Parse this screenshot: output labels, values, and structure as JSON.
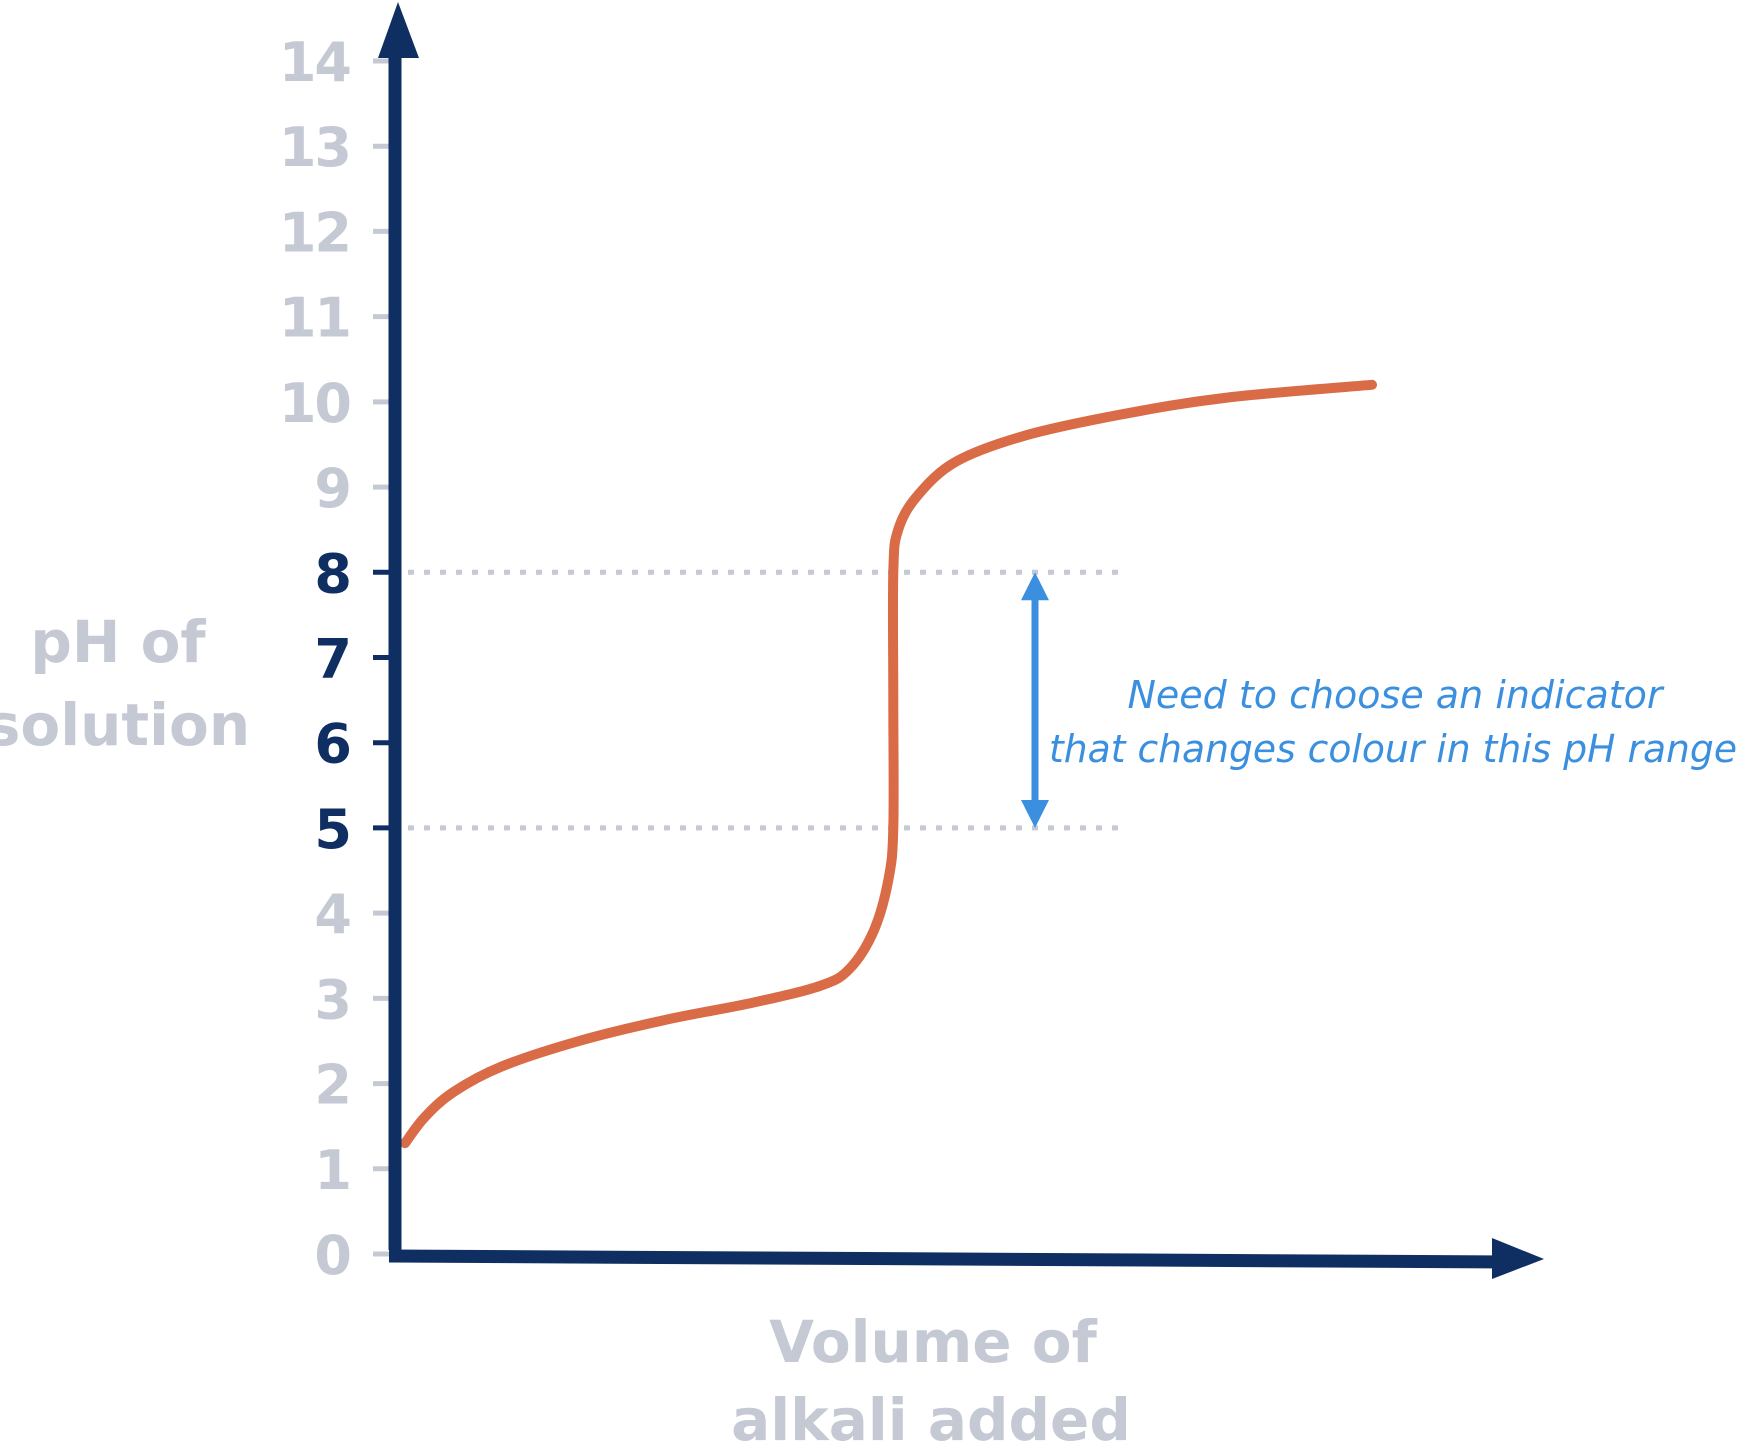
{
  "chart_data": {
    "type": "line",
    "title": "",
    "xlabel": "Volume of alkali added",
    "xlabel_lines": [
      "Volume of",
      "alkali added"
    ],
    "ylabel": "pH of solution",
    "ylabel_lines": [
      "pH of",
      "solution"
    ],
    "ylim": [
      0,
      14
    ],
    "yticks": [
      "0",
      "1",
      "2",
      "3",
      "4",
      "5",
      "6",
      "7",
      "8",
      "9",
      "10",
      "11",
      "12",
      "13",
      "14"
    ],
    "highlighted_ticks": [
      "5",
      "6",
      "7",
      "8"
    ],
    "x_axis_ticks": "none",
    "grid": false,
    "legend": "none",
    "series": [
      {
        "curve": "titration curve",
        "color": "#d96b47",
        "points": [
          {
            "x": 0.0,
            "y": 1.3
          },
          {
            "x": 0.02,
            "y": 1.6
          },
          {
            "x": 0.05,
            "y": 1.9
          },
          {
            "x": 0.1,
            "y": 2.2
          },
          {
            "x": 0.18,
            "y": 2.5
          },
          {
            "x": 0.27,
            "y": 2.75
          },
          {
            "x": 0.36,
            "y": 2.95
          },
          {
            "x": 0.43,
            "y": 3.15
          },
          {
            "x": 0.46,
            "y": 3.35
          },
          {
            "x": 0.485,
            "y": 3.8
          },
          {
            "x": 0.5,
            "y": 4.4
          },
          {
            "x": 0.505,
            "y": 5.0
          },
          {
            "x": 0.505,
            "y": 6.5
          },
          {
            "x": 0.505,
            "y": 8.0
          },
          {
            "x": 0.51,
            "y": 8.5
          },
          {
            "x": 0.53,
            "y": 8.9
          },
          {
            "x": 0.57,
            "y": 9.3
          },
          {
            "x": 0.64,
            "y": 9.6
          },
          {
            "x": 0.74,
            "y": 9.85
          },
          {
            "x": 0.85,
            "y": 10.05
          },
          {
            "x": 1.0,
            "y": 10.2
          }
        ]
      }
    ],
    "reference_lines": [
      {
        "y": 8,
        "style": "dotted",
        "color": "#c5c9d4"
      },
      {
        "y": 5,
        "style": "dotted",
        "color": "#c5c9d4"
      }
    ],
    "annotation": {
      "lines": [
        "Need to choose an indicator",
        "that changes colour in this pH range"
      ],
      "color": "#3a8fdf",
      "range": [
        5,
        8
      ]
    },
    "colors": {
      "axis": "#0f2f63",
      "tick_label": "#c5c9d4",
      "tick_label_highlight": "#0f2f63",
      "curve": "#d96b47",
      "annotation": "#3a8fdf",
      "reference": "#c5c9d4"
    }
  }
}
